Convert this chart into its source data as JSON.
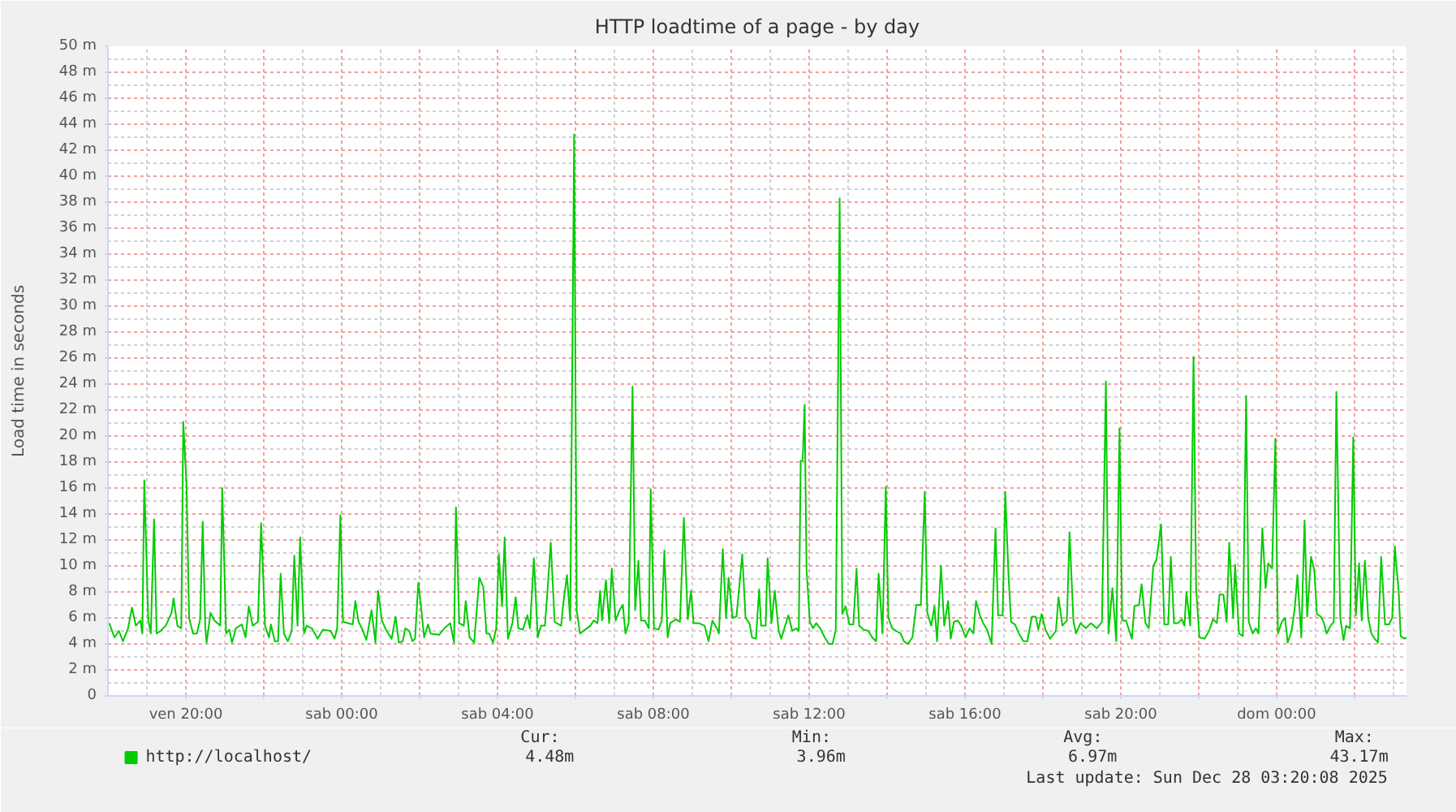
{
  "chart_data": {
    "type": "line",
    "title": "HTTP loadtime of a page - by day",
    "ylabel": "Load time in seconds",
    "xlim": [
      "2025-12-26T18:00",
      "2025-12-28T03:20"
    ],
    "xticks": [
      {
        "value": "2025-12-26T20:00",
        "label": "ven 20:00"
      },
      {
        "value": "2025-12-26T22:00",
        "label": null
      },
      {
        "value": "2025-12-27T00:00",
        "label": "sab 00:00"
      },
      {
        "value": "2025-12-27T02:00",
        "label": null
      },
      {
        "value": "2025-12-27T04:00",
        "label": "sab 04:00"
      },
      {
        "value": "2025-12-27T06:00",
        "label": null
      },
      {
        "value": "2025-12-27T08:00",
        "label": "sab 08:00"
      },
      {
        "value": "2025-12-27T10:00",
        "label": null
      },
      {
        "value": "2025-12-27T12:00",
        "label": "sab 12:00"
      },
      {
        "value": "2025-12-27T14:00",
        "label": null
      },
      {
        "value": "2025-12-27T16:00",
        "label": "sab 16:00"
      },
      {
        "value": "2025-12-27T18:00",
        "label": null
      },
      {
        "value": "2025-12-27T20:00",
        "label": "sab 20:00"
      },
      {
        "value": "2025-12-27T22:00",
        "label": null
      },
      {
        "value": "2025-12-28T00:00",
        "label": "dom 00:00"
      },
      {
        "value": "2025-12-28T02:00",
        "label": null
      }
    ],
    "ylim": [
      0,
      50
    ],
    "yticks": [
      0,
      {
        "value": 2,
        "label": "2 m"
      },
      {
        "value": 4,
        "label": "4 m"
      },
      {
        "value": 6,
        "label": "6 m"
      },
      {
        "value": 8,
        "label": "8 m"
      },
      {
        "value": 10,
        "label": "10 m"
      },
      {
        "value": 12,
        "label": "12 m"
      },
      {
        "value": 14,
        "label": "14 m"
      },
      {
        "value": 16,
        "label": "16 m"
      },
      {
        "value": 18,
        "label": "18 m"
      },
      {
        "value": 20,
        "label": "20 m"
      },
      {
        "value": 22,
        "label": "22 m"
      },
      {
        "value": 24,
        "label": "24 m"
      },
      {
        "value": 26,
        "label": "26 m"
      },
      {
        "value": 28,
        "label": "28 m"
      },
      {
        "value": 30,
        "label": "30 m"
      },
      {
        "value": 32,
        "label": "32 m"
      },
      {
        "value": 34,
        "label": "34 m"
      },
      {
        "value": 36,
        "label": "36 m"
      },
      {
        "value": 38,
        "label": "38 m"
      },
      {
        "value": 40,
        "label": "40 m"
      },
      {
        "value": 42,
        "label": "42 m"
      },
      {
        "value": 44,
        "label": "44 m"
      },
      {
        "value": 46,
        "label": "46 m"
      },
      {
        "value": 48,
        "label": "48 m"
      },
      {
        "value": 50,
        "label": "50 m"
      }
    ],
    "grid": true,
    "legend": "bottom",
    "line_style": "solid",
    "x": [
      "2025-12-26T18:02",
      "2025-12-26T18:10",
      "2025-12-26T18:17",
      "2025-12-26T18:23",
      "2025-12-26T18:31",
      "2025-12-26T18:37",
      "2025-12-26T18:43",
      "2025-12-26T18:50",
      "2025-12-26T18:53",
      "2025-12-26T18:56",
      "2025-12-26T19:02",
      "2025-12-26T19:06",
      "2025-12-26T19:11",
      "2025-12-26T19:15",
      "2025-12-26T19:21",
      "2025-12-26T19:29",
      "2025-12-26T19:38",
      "2025-12-26T19:41",
      "2025-12-26T19:47",
      "2025-12-26T19:53",
      "2025-12-26T19:56",
      "2025-12-26T20:01",
      "2025-12-26T20:05",
      "2025-12-26T20:11",
      "2025-12-26T20:17",
      "2025-12-26T20:22",
      "2025-12-26T20:26",
      "2025-12-26T20:30",
      "2025-12-26T20:32",
      "2025-12-26T20:38",
      "2025-12-26T20:44",
      "2025-12-26T20:53",
      "2025-12-26T20:56",
      "2025-12-26T21:02",
      "2025-12-26T21:07",
      "2025-12-26T21:11",
      "2025-12-26T21:17",
      "2025-12-26T21:26",
      "2025-12-26T21:32",
      "2025-12-26T21:37",
      "2025-12-26T21:43",
      "2025-12-26T21:51",
      "2025-12-26T21:56",
      "2025-12-26T22:02",
      "2025-12-26T22:08",
      "2025-12-26T22:11",
      "2025-12-26T22:17",
      "2025-12-26T22:22",
      "2025-12-26T22:26",
      "2025-12-26T22:31",
      "2025-12-26T22:37",
      "2025-12-26T22:43",
      "2025-12-26T22:47",
      "2025-12-26T22:52",
      "2025-12-26T22:56",
      "2025-12-26T23:02",
      "2025-12-26T23:06",
      "2025-12-26T23:14",
      "2025-12-26T23:23",
      "2025-12-26T23:31",
      "2025-12-26T23:43",
      "2025-12-26T23:49",
      "2025-12-26T23:53",
      "2025-12-26T23:58",
      "2025-12-27T00:02",
      "2025-12-27T00:17",
      "2025-12-27T00:21",
      "2025-12-27T00:26",
      "2025-12-27T00:31",
      "2025-12-27T00:38",
      "2025-12-27T00:46",
      "2025-12-27T00:52",
      "2025-12-27T00:56",
      "2025-12-27T01:02",
      "2025-12-27T01:08",
      "2025-12-27T01:17",
      "2025-12-27T01:23",
      "2025-12-27T01:28",
      "2025-12-27T01:34",
      "2025-12-27T01:38",
      "2025-12-27T01:44",
      "2025-12-27T01:49",
      "2025-12-27T01:53",
      "2025-12-27T01:58",
      "2025-12-27T02:02",
      "2025-12-27T02:07",
      "2025-12-27T02:13",
      "2025-12-27T02:17",
      "2025-12-27T02:30",
      "2025-12-27T02:38",
      "2025-12-27T02:47",
      "2025-12-27T02:53",
      "2025-12-27T02:56",
      "2025-12-27T03:01",
      "2025-12-27T03:08",
      "2025-12-27T03:11",
      "2025-12-27T03:17",
      "2025-12-27T03:24",
      "2025-12-27T03:32",
      "2025-12-27T03:38",
      "2025-12-27T03:43",
      "2025-12-27T03:47",
      "2025-12-27T03:53",
      "2025-12-27T03:58",
      "2025-12-27T04:02",
      "2025-12-27T04:07",
      "2025-12-27T04:11",
      "2025-12-27T04:16",
      "2025-12-27T04:23",
      "2025-12-27T04:28",
      "2025-12-27T04:32",
      "2025-12-27T04:39",
      "2025-12-27T04:46",
      "2025-12-27T04:50",
      "2025-12-27T04:56",
      "2025-12-27T05:02",
      "2025-12-27T05:07",
      "2025-12-27T05:13",
      "2025-12-27T05:17",
      "2025-12-27T05:22",
      "2025-12-27T05:28",
      "2025-12-27T05:38",
      "2025-12-27T05:41",
      "2025-12-27T05:47",
      "2025-12-27T05:52",
      "2025-12-27T05:58",
      "2025-12-27T06:02",
      "2025-12-27T06:07",
      "2025-12-27T06:15",
      "2025-12-27T06:23",
      "2025-12-27T06:28",
      "2025-12-27T06:34",
      "2025-12-27T06:38",
      "2025-12-27T06:41",
      "2025-12-27T06:47",
      "2025-12-27T06:52",
      "2025-12-27T06:56",
      "2025-12-27T07:02",
      "2025-12-27T07:08",
      "2025-12-27T07:13",
      "2025-12-27T07:17",
      "2025-12-27T07:22",
      "2025-12-27T07:28",
      "2025-12-27T07:32",
      "2025-12-27T07:37",
      "2025-12-27T07:41",
      "2025-12-27T07:47",
      "2025-12-27T07:53",
      "2025-12-27T07:56",
      "2025-12-27T08:01",
      "2025-12-27T08:08",
      "2025-12-27T08:13",
      "2025-12-27T08:17",
      "2025-12-27T08:22",
      "2025-12-27T08:26",
      "2025-12-27T08:35",
      "2025-12-27T08:41",
      "2025-12-27T08:47",
      "2025-12-27T08:53",
      "2025-12-27T08:58",
      "2025-12-27T09:02",
      "2025-12-27T09:10",
      "2025-12-27T09:19",
      "2025-12-27T09:25",
      "2025-12-27T09:31",
      "2025-12-27T09:38",
      "2025-12-27T09:41",
      "2025-12-27T09:47",
      "2025-12-27T09:52",
      "2025-12-27T09:56",
      "2025-12-27T10:02",
      "2025-12-27T10:08",
      "2025-12-27T10:17",
      "2025-12-27T10:22",
      "2025-12-27T10:28",
      "2025-12-27T10:32",
      "2025-12-27T10:38",
      "2025-12-27T10:43",
      "2025-12-27T10:46",
      "2025-12-27T10:53",
      "2025-12-27T10:56",
      "2025-12-27T11:02",
      "2025-12-27T11:07",
      "2025-12-27T11:13",
      "2025-12-27T11:17",
      "2025-12-27T11:23",
      "2025-12-27T11:28",
      "2025-12-27T11:34",
      "2025-12-27T11:40",
      "2025-12-27T11:44",
      "2025-12-27T11:47",
      "2025-12-27T11:50",
      "2025-12-27T11:53",
      "2025-12-27T11:56",
      "2025-12-27T12:01",
      "2025-12-27T12:06",
      "2025-12-27T12:11",
      "2025-12-27T12:17",
      "2025-12-27T12:24",
      "2025-12-27T12:30",
      "2025-12-27T12:36",
      "2025-12-27T12:41",
      "2025-12-27T12:47",
      "2025-12-27T12:51",
      "2025-12-27T12:56",
      "2025-12-27T13:02",
      "2025-12-27T13:08",
      "2025-12-27T13:13",
      "2025-12-27T13:17",
      "2025-12-27T13:24",
      "2025-12-27T13:31",
      "2025-12-27T13:37",
      "2025-12-27T13:43",
      "2025-12-27T13:47",
      "2025-12-27T13:53",
      "2025-12-27T13:58",
      "2025-12-27T14:02",
      "2025-12-27T14:08",
      "2025-12-27T14:14",
      "2025-12-27T14:21",
      "2025-12-27T14:26",
      "2025-12-27T14:32",
      "2025-12-27T14:39",
      "2025-12-27T14:45",
      "2025-12-27T14:52",
      "2025-12-27T14:58",
      "2025-12-27T15:02",
      "2025-12-27T15:08",
      "2025-12-27T15:13",
      "2025-12-27T15:17",
      "2025-12-27T15:23",
      "2025-12-27T15:28",
      "2025-12-27T15:34",
      "2025-12-27T15:38",
      "2025-12-27T15:43",
      "2025-12-27T15:49",
      "2025-12-27T15:54",
      "2025-12-27T16:01",
      "2025-12-27T16:07",
      "2025-12-27T16:13",
      "2025-12-27T16:17",
      "2025-12-27T16:23",
      "2025-12-27T16:28",
      "2025-12-27T16:34",
      "2025-12-27T16:41",
      "2025-12-27T16:47",
      "2025-12-27T16:51",
      "2025-12-27T16:58",
      "2025-12-27T17:02",
      "2025-12-27T17:07",
      "2025-12-27T17:11",
      "2025-12-27T17:17",
      "2025-12-27T17:23",
      "2025-12-27T17:30",
      "2025-12-27T17:36",
      "2025-12-27T17:43",
      "2025-12-27T17:49",
      "2025-12-27T17:53",
      "2025-12-27T17:58",
      "2025-12-27T18:04",
      "2025-12-27T18:11",
      "2025-12-27T18:20",
      "2025-12-27T18:24",
      "2025-12-27T18:30",
      "2025-12-27T18:37",
      "2025-12-27T18:41",
      "2025-12-27T18:47",
      "2025-12-27T18:51",
      "2025-12-27T18:58",
      "2025-12-27T19:06",
      "2025-12-27T19:14",
      "2025-12-27T19:23",
      "2025-12-27T19:31",
      "2025-12-27T19:37",
      "2025-12-27T19:41",
      "2025-12-27T19:47",
      "2025-12-27T19:53",
      "2025-12-27T19:58",
      "2025-12-27T20:02",
      "2025-12-27T20:08",
      "2025-12-27T20:17",
      "2025-12-27T20:21",
      "2025-12-27T20:28",
      "2025-12-27T20:32",
      "2025-12-27T20:38",
      "2025-12-27T20:43",
      "2025-12-27T20:50",
      "2025-12-27T20:55",
      "2025-12-27T21:02",
      "2025-12-27T21:07",
      "2025-12-27T21:13",
      "2025-12-27T21:17",
      "2025-12-27T21:22",
      "2025-12-27T21:28",
      "2025-12-27T21:34",
      "2025-12-27T21:38",
      "2025-12-27T21:41",
      "2025-12-27T21:47",
      "2025-12-27T21:52",
      "2025-12-27T21:56",
      "2025-12-27T22:01",
      "2025-12-27T22:09",
      "2025-12-27T22:16",
      "2025-12-27T22:22",
      "2025-12-27T22:28",
      "2025-12-27T22:32",
      "2025-12-27T22:38",
      "2025-12-27T22:43",
      "2025-12-27T22:47",
      "2025-12-27T22:53",
      "2025-12-27T22:56",
      "2025-12-27T23:02",
      "2025-12-27T23:08",
      "2025-12-27T23:13",
      "2025-12-27T23:17",
      "2025-12-27T23:23",
      "2025-12-27T23:28",
      "2025-12-27T23:32",
      "2025-12-27T23:38",
      "2025-12-27T23:43",
      "2025-12-27T23:47",
      "2025-12-27T23:53",
      "2025-12-27T23:58",
      "2025-12-28T00:02",
      "2025-12-28T00:08",
      "2025-12-28T00:13",
      "2025-12-28T00:17",
      "2025-12-28T00:23",
      "2025-12-28T00:28",
      "2025-12-28T00:32",
      "2025-12-28T00:38",
      "2025-12-28T00:43",
      "2025-12-28T00:47",
      "2025-12-28T00:53",
      "2025-12-28T00:58",
      "2025-12-28T01:02",
      "2025-12-28T01:08",
      "2025-12-28T01:13",
      "2025-12-28T01:17",
      "2025-12-28T01:23",
      "2025-12-28T01:28",
      "2025-12-28T01:32",
      "2025-12-28T01:38",
      "2025-12-28T01:43",
      "2025-12-28T01:47",
      "2025-12-28T01:53",
      "2025-12-28T01:58",
      "2025-12-28T02:02",
      "2025-12-28T02:07",
      "2025-12-28T02:11",
      "2025-12-28T02:16",
      "2025-12-28T02:21",
      "2025-12-28T02:26",
      "2025-12-28T02:31",
      "2025-12-28T02:36",
      "2025-12-28T02:41",
      "2025-12-28T02:47",
      "2025-12-28T02:53",
      "2025-12-28T02:58",
      "2025-12-28T03:02",
      "2025-12-28T03:08",
      "2025-12-28T03:11",
      "2025-12-28T03:17",
      "2025-12-28T03:20"
    ],
    "series": [
      {
        "name": "http://localhost/",
        "color": "#00cc00",
        "values": [
          5.6,
          4.5,
          5.0,
          4.2,
          5.2,
          6.8,
          5.4,
          5.8,
          4.8,
          16.6,
          5.9,
          4.8,
          13.6,
          4.8,
          5.0,
          5.4,
          6.4,
          7.5,
          5.4,
          5.2,
          21.1,
          16.3,
          6.0,
          4.8,
          4.8,
          5.9,
          13.4,
          5.2,
          4.1,
          6.4,
          5.8,
          5.4,
          16.0,
          4.8,
          5.1,
          4.1,
          5.2,
          5.5,
          4.5,
          6.9,
          5.4,
          5.7,
          13.3,
          5.4,
          4.5,
          5.5,
          4.2,
          4.2,
          9.4,
          4.8,
          4.2,
          5.0,
          10.8,
          5.4,
          12.2,
          4.8,
          5.4,
          5.2,
          4.4,
          5.1,
          5.0,
          4.4,
          5.2,
          13.9,
          5.7,
          5.5,
          7.3,
          5.7,
          5.2,
          4.3,
          6.6,
          4.1,
          8.1,
          5.8,
          5.1,
          4.4,
          6.1,
          4.1,
          4.2,
          5.2,
          5.0,
          4.2,
          4.4,
          8.7,
          7.0,
          4.5,
          5.5,
          4.8,
          4.7,
          5.2,
          5.6,
          4.1,
          14.5,
          5.6,
          5.4,
          7.3,
          4.5,
          4.1,
          9.1,
          8.4,
          4.8,
          4.8,
          4.1,
          5.2,
          10.9,
          6.9,
          12.2,
          4.4,
          5.6,
          7.6,
          5.2,
          5.1,
          6.2,
          5.2,
          10.6,
          4.5,
          5.4,
          5.4,
          8.1,
          11.8,
          5.7,
          5.4,
          7.0,
          9.3,
          5.8,
          43.2,
          6.6,
          4.8,
          5.1,
          5.4,
          5.8,
          5.6,
          8.1,
          5.8,
          8.9,
          5.6,
          9.8,
          5.8,
          6.6,
          7.0,
          4.8,
          5.6,
          23.8,
          6.6,
          10.4,
          5.8,
          5.8,
          5.2,
          15.9,
          5.2,
          5.1,
          5.8,
          11.2,
          4.5,
          5.6,
          5.9,
          5.7,
          13.7,
          5.9,
          8.1,
          5.6,
          5.6,
          5.4,
          4.2,
          5.8,
          5.2,
          4.8,
          11.3,
          6.0,
          9.1,
          6.0,
          6.1,
          10.9,
          6.0,
          5.6,
          4.5,
          4.4,
          8.2,
          5.4,
          5.4,
          10.6,
          5.6,
          8.1,
          5.0,
          4.4,
          5.4,
          6.2,
          5.0,
          5.2,
          5.0,
          18.1,
          18.1,
          22.4,
          9.7,
          5.7,
          5.2,
          5.6,
          5.2,
          4.5,
          4.0,
          4.0,
          5.1,
          38.3,
          6.3,
          6.9,
          5.5,
          5.5,
          9.8,
          5.4,
          5.1,
          5.0,
          4.5,
          4.2,
          9.4,
          4.8,
          16.1,
          6.0,
          5.2,
          5.0,
          4.8,
          4.2,
          4.0,
          4.5,
          7.0,
          7.0,
          15.7,
          6.4,
          5.4,
          6.9,
          4.2,
          10.0,
          5.4,
          7.3,
          4.4,
          5.7,
          5.8,
          5.4,
          4.5,
          5.2,
          4.8,
          7.3,
          6.2,
          5.6,
          5.1,
          4.0,
          12.9,
          6.2,
          6.2,
          15.7,
          9.3,
          5.7,
          5.5,
          4.8,
          4.2,
          4.2,
          6.1,
          6.1,
          5.1,
          6.3,
          5.1,
          4.4,
          5.0,
          7.6,
          5.4,
          5.8,
          12.6,
          5.8,
          4.8,
          5.6,
          5.2,
          5.6,
          5.2,
          5.7,
          24.2,
          4.8,
          8.3,
          4.2,
          20.6,
          5.8,
          5.8,
          4.4,
          6.9,
          7.0,
          8.6,
          5.6,
          5.2,
          10.0,
          10.5,
          13.2,
          5.5,
          5.5,
          10.7,
          5.6,
          5.6,
          5.9,
          5.4,
          8.0,
          5.4,
          26.1,
          8.3,
          4.5,
          4.4,
          5.0,
          5.9,
          5.6,
          7.8,
          7.8,
          5.7,
          11.8,
          6.0,
          10.1,
          4.8,
          4.6,
          23.1,
          5.7,
          4.8,
          5.2,
          4.8,
          12.9,
          8.3,
          10.2,
          9.8,
          19.8,
          4.8,
          5.7,
          6.0,
          4.1,
          5.0,
          6.8,
          9.3,
          4.5,
          13.5,
          6.1,
          10.7,
          9.7,
          6.3,
          6.1,
          5.6,
          4.8,
          5.4,
          5.7,
          23.4,
          6.0,
          4.3,
          5.4,
          5.2,
          19.9,
          6.2,
          10.2,
          5.8,
          10.4,
          6.0,
          4.8,
          4.4,
          4.1,
          10.7,
          5.5,
          5.5,
          6.0,
          11.5,
          8.0,
          4.6,
          4.4,
          4.5
        ]
      }
    ],
    "annotations": [
      "Cur:",
      "4.48m",
      "Min:",
      "3.96m",
      "Avg:",
      "6.97m",
      "Max:",
      "43.17m",
      "Last update: Sun Dec 28 03:20:08 2025"
    ]
  }
}
